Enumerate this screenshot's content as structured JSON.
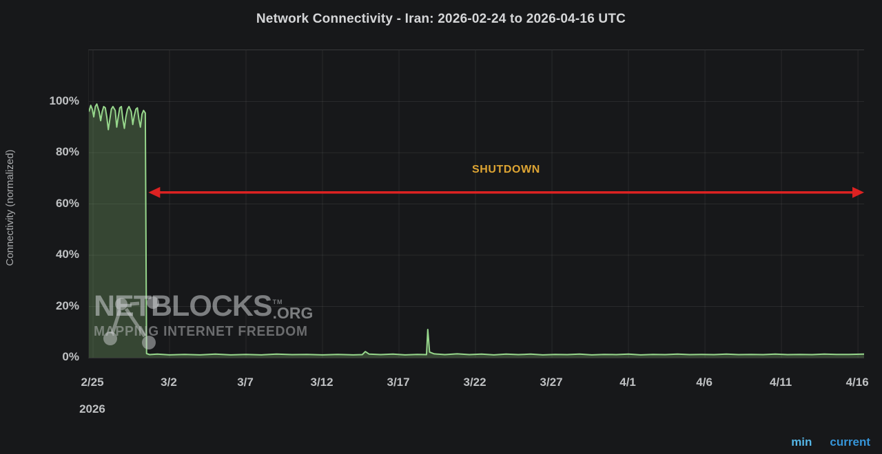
{
  "title": "Network Connectivity - Iran: 2026-02-24 to 2026-04-16 UTC",
  "y_axis": {
    "label": "Connectivity (normalized)"
  },
  "x_axis": {
    "year_label": "2026",
    "year_label_day": 1
  },
  "watermark": {
    "brand": "NETBLOCKS",
    "tm": "TM",
    "tld": ".ORG",
    "tagline": "MAPPING INTERNET FREEDOM"
  },
  "legend": [
    {
      "label": "min",
      "color": "#55b6e6"
    },
    {
      "label": "current",
      "color": "#3695d8"
    }
  ],
  "colors": {
    "background": "#17181a",
    "grid": "rgba(255,255,255,0.08)",
    "series_line": "#97d78c",
    "series_fill": "rgba(126,178,109,0.30)",
    "arrow": "#dd2222",
    "annotation_text": "#dda433"
  },
  "chart_data": {
    "type": "area",
    "title": "Network Connectivity - Iran: 2026-02-24 to 2026-04-16 UTC",
    "xlabel": "",
    "ylabel": "Connectivity (normalized)",
    "x_unit": "days since 2026-02-24 00:00 UTC",
    "x_domain": [
      0.73,
      51.4
    ],
    "y_domain": [
      0,
      120
    ],
    "grid": true,
    "x_ticks": [
      {
        "day": 1,
        "label": "2/25"
      },
      {
        "day": 6,
        "label": "3/2"
      },
      {
        "day": 11,
        "label": "3/7"
      },
      {
        "day": 16,
        "label": "3/12"
      },
      {
        "day": 21,
        "label": "3/17"
      },
      {
        "day": 26,
        "label": "3/22"
      },
      {
        "day": 31,
        "label": "3/27"
      },
      {
        "day": 36,
        "label": "4/1"
      },
      {
        "day": 41,
        "label": "4/6"
      },
      {
        "day": 46,
        "label": "4/11"
      },
      {
        "day": 51,
        "label": "4/16"
      }
    ],
    "y_ticks": [
      {
        "value": 0,
        "label": "0%"
      },
      {
        "value": 20,
        "label": "20%"
      },
      {
        "value": 40,
        "label": "40%"
      },
      {
        "value": 60,
        "label": "60%"
      },
      {
        "value": 80,
        "label": "80%"
      },
      {
        "value": 100,
        "label": "100%"
      }
    ],
    "series": [
      {
        "name": "connectivity",
        "points": [
          [
            0.73,
            96
          ],
          [
            0.85,
            98.5
          ],
          [
            0.95,
            97
          ],
          [
            1.05,
            94
          ],
          [
            1.15,
            98
          ],
          [
            1.25,
            99
          ],
          [
            1.4,
            96
          ],
          [
            1.5,
            92.5
          ],
          [
            1.6,
            96
          ],
          [
            1.7,
            98
          ],
          [
            1.8,
            97.5
          ],
          [
            1.9,
            94
          ],
          [
            2.0,
            89
          ],
          [
            2.1,
            93
          ],
          [
            2.2,
            97
          ],
          [
            2.3,
            98
          ],
          [
            2.45,
            96.5
          ],
          [
            2.55,
            90
          ],
          [
            2.65,
            94
          ],
          [
            2.75,
            97.5
          ],
          [
            2.85,
            98
          ],
          [
            2.95,
            93
          ],
          [
            3.05,
            89.5
          ],
          [
            3.15,
            94
          ],
          [
            3.25,
            97
          ],
          [
            3.35,
            98
          ],
          [
            3.5,
            96
          ],
          [
            3.6,
            91
          ],
          [
            3.7,
            94.5
          ],
          [
            3.8,
            97
          ],
          [
            3.9,
            97.5
          ],
          [
            4.0,
            93
          ],
          [
            4.1,
            90
          ],
          [
            4.2,
            95
          ],
          [
            4.3,
            96.5
          ],
          [
            4.42,
            95.5
          ],
          [
            4.5,
            1.6
          ],
          [
            4.7,
            1.2
          ],
          [
            5.2,
            1.4
          ],
          [
            6,
            1.1
          ],
          [
            7,
            1.3
          ],
          [
            8,
            1.1
          ],
          [
            9,
            1.4
          ],
          [
            10,
            1.1
          ],
          [
            11,
            1.3
          ],
          [
            12,
            1.1
          ],
          [
            13,
            1.4
          ],
          [
            14,
            1.2
          ],
          [
            15,
            1.3
          ],
          [
            16,
            1.1
          ],
          [
            17,
            1.3
          ],
          [
            18,
            1.1
          ],
          [
            18.6,
            1.2
          ],
          [
            18.8,
            2.4
          ],
          [
            19.05,
            1.4
          ],
          [
            19.8,
            1.2
          ],
          [
            20.6,
            1.4
          ],
          [
            21.4,
            1.1
          ],
          [
            22.2,
            1.3
          ],
          [
            22.8,
            1.2
          ],
          [
            22.88,
            11
          ],
          [
            23.0,
            2.2
          ],
          [
            23.3,
            1.5
          ],
          [
            24,
            1.2
          ],
          [
            24.8,
            1.5
          ],
          [
            25.6,
            1.2
          ],
          [
            26.4,
            1.4
          ],
          [
            27.2,
            1.1
          ],
          [
            28,
            1.4
          ],
          [
            28.8,
            1.2
          ],
          [
            29.6,
            1.4
          ],
          [
            30.4,
            1.1
          ],
          [
            31.2,
            1.3
          ],
          [
            32,
            1.2
          ],
          [
            32.8,
            1.4
          ],
          [
            33.6,
            1.1
          ],
          [
            34.4,
            1.3
          ],
          [
            35.2,
            1.2
          ],
          [
            36,
            1.4
          ],
          [
            36.8,
            1.1
          ],
          [
            37.6,
            1.3
          ],
          [
            38.4,
            1.2
          ],
          [
            39.2,
            1.4
          ],
          [
            40,
            1.2
          ],
          [
            40.8,
            1.3
          ],
          [
            41.6,
            1.2
          ],
          [
            42.4,
            1.4
          ],
          [
            43.2,
            1.2
          ],
          [
            44,
            1.3
          ],
          [
            44.8,
            1.2
          ],
          [
            45.6,
            1.4
          ],
          [
            46.4,
            1.2
          ],
          [
            47.2,
            1.3
          ],
          [
            48,
            1.2
          ],
          [
            48.8,
            1.4
          ],
          [
            49.6,
            1.3
          ],
          [
            50.4,
            1.3
          ],
          [
            51.4,
            1.4
          ]
        ]
      }
    ],
    "annotations": [
      {
        "type": "double-arrow-span",
        "label": "SHUTDOWN",
        "y_value": 64.5,
        "x_start_day": 4.62,
        "x_end_day": 51.4,
        "label_day": 28
      }
    ],
    "legend_position": "bottom-right"
  }
}
